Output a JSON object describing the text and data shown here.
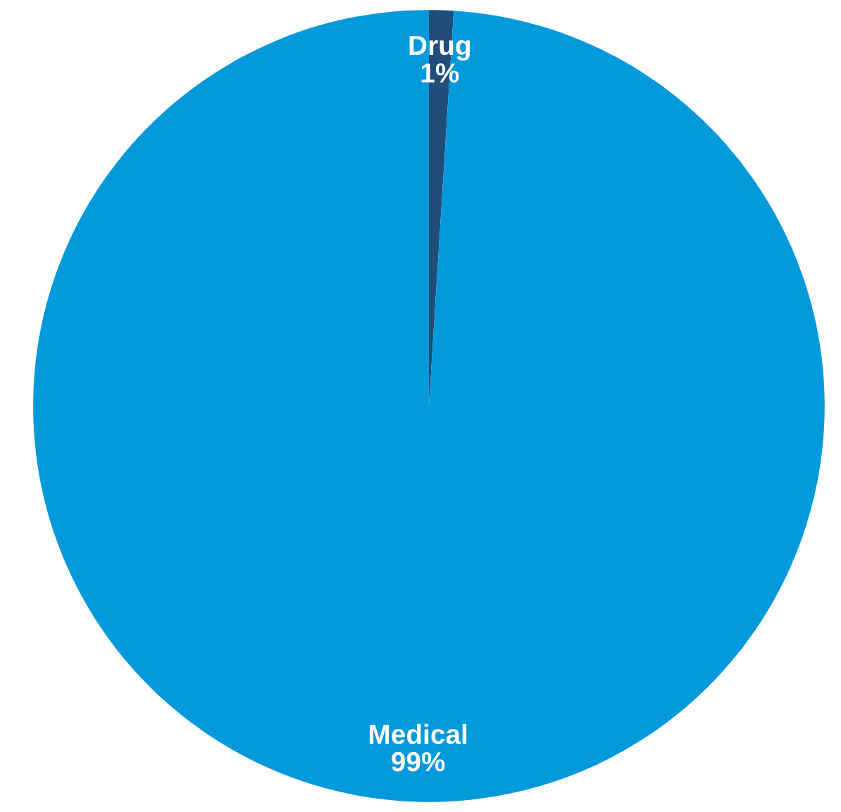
{
  "chart_data": {
    "type": "pie",
    "categories": [
      "Drug",
      "Medical"
    ],
    "values": [
      1,
      99
    ],
    "colors": [
      "#1f4e79",
      "#0099dc"
    ],
    "value_labels": [
      "1%",
      "99%"
    ]
  }
}
